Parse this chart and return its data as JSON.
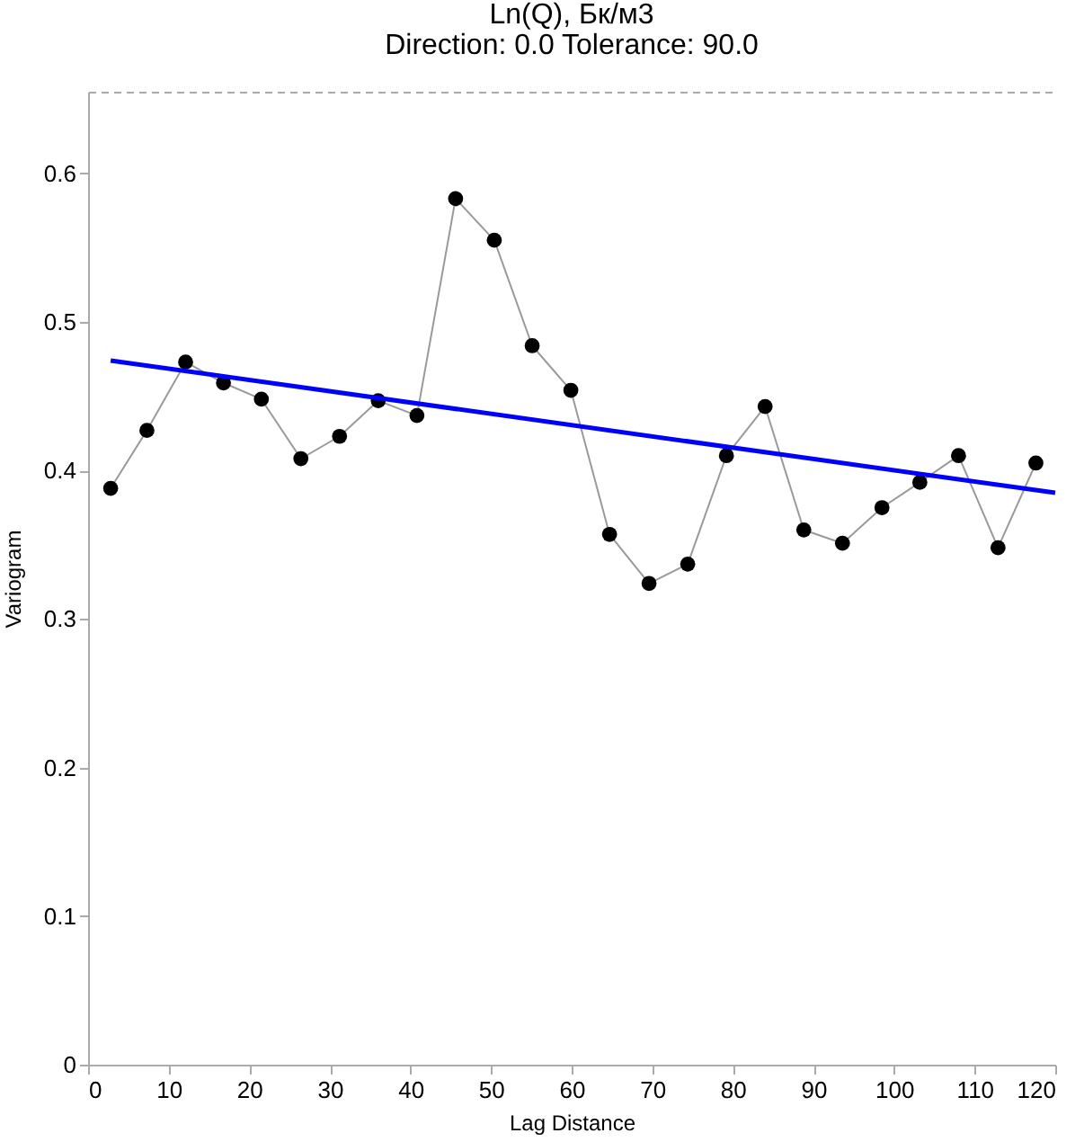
{
  "chart_data": {
    "type": "line",
    "title": "Ln(Q), Бк/м3",
    "subtitle": "Direction: 0.0   Tolerance: 90.0",
    "xlabel": "Lag Distance",
    "ylabel": "Variogram",
    "xlim": [
      0,
      120
    ],
    "xticks": [
      0,
      10,
      20,
      30,
      40,
      50,
      60,
      70,
      80,
      90,
      100,
      110,
      120
    ],
    "ylim": [
      0,
      0.655
    ],
    "yticks": [
      0,
      0.1,
      0.2,
      0.3,
      0.4,
      0.5,
      0.6
    ],
    "grid": false,
    "series": [
      {
        "marker": "circle",
        "color": "#000000",
        "x": [
          2.8,
          7.3,
          12.1,
          16.8,
          21.5,
          26.4,
          31.2,
          36.0,
          40.8,
          45.6,
          50.4,
          55.1,
          59.9,
          64.7,
          69.6,
          74.4,
          79.2,
          84.0,
          88.8,
          93.6,
          98.5,
          103.2,
          108.0,
          112.9,
          117.6
        ],
        "values": [
          0.388,
          0.427,
          0.473,
          0.459,
          0.448,
          0.408,
          0.423,
          0.447,
          0.437,
          0.583,
          0.555,
          0.484,
          0.454,
          0.357,
          0.324,
          0.337,
          0.41,
          0.443,
          0.36,
          0.351,
          0.375,
          0.392,
          0.41,
          0.348,
          0.405
        ]
      },
      {
        "marker": "none",
        "color": "#0000ff",
        "x": [
          2.8,
          120
        ],
        "values": [
          0.474,
          0.385
        ]
      }
    ]
  }
}
